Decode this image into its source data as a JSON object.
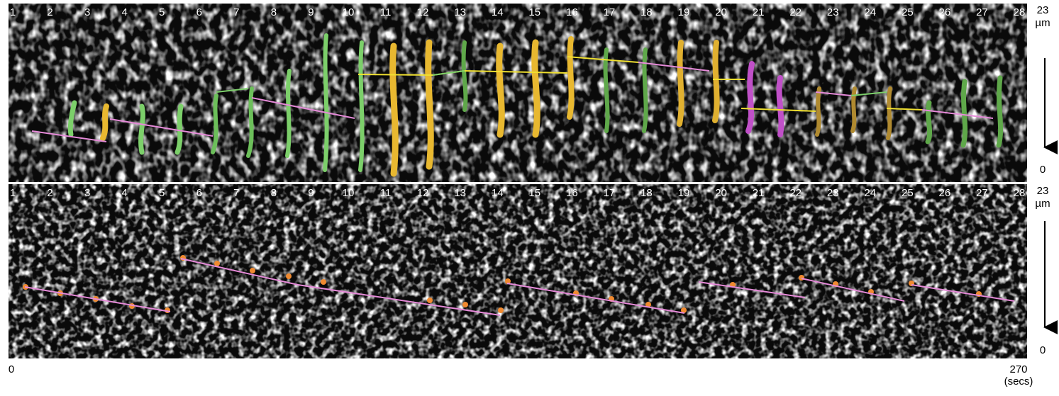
{
  "panels": [
    {
      "frame_labels": [
        1,
        2,
        3,
        4,
        5,
        6,
        7,
        8,
        9,
        10,
        11,
        12,
        13,
        14,
        15,
        16,
        17,
        18,
        19,
        20,
        21,
        22,
        23,
        24,
        25,
        26,
        27,
        28
      ],
      "scale_top": "23",
      "scale_unit": "µm",
      "scale_bottom": "0"
    },
    {
      "frame_labels": [
        1,
        2,
        3,
        4,
        5,
        6,
        7,
        8,
        9,
        10,
        11,
        12,
        13,
        14,
        15,
        16,
        17,
        18,
        19,
        20,
        21,
        22,
        23,
        24,
        25,
        26,
        27,
        28
      ],
      "scale_top": "23",
      "scale_unit": "µm",
      "scale_bottom": "0"
    }
  ],
  "time_axis": {
    "start": "0",
    "end": "270",
    "unit": "(secs)"
  }
}
